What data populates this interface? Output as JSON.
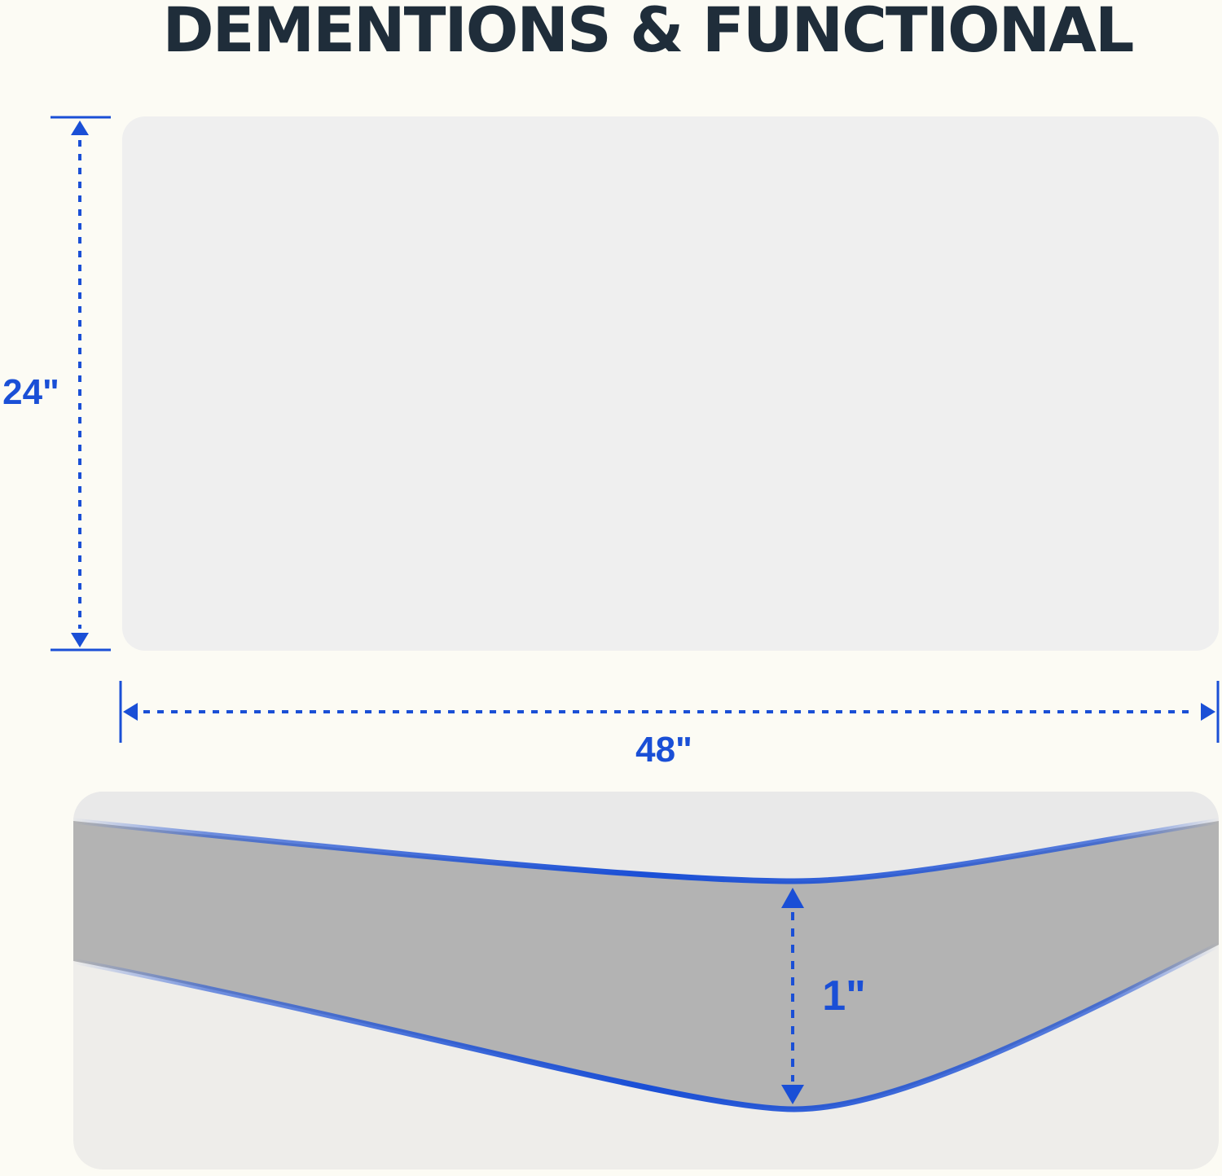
{
  "title": "DEMENTIONS & FUNCTIONAL",
  "dimensions": {
    "height": "24\"",
    "width": "48\"",
    "thickness": "1\""
  },
  "colors": {
    "accent": "#1a4fd6",
    "background": "#fcfbf4",
    "title": "#1f2d3a",
    "panel": "#efefef",
    "edge": "#b3b3b3"
  }
}
